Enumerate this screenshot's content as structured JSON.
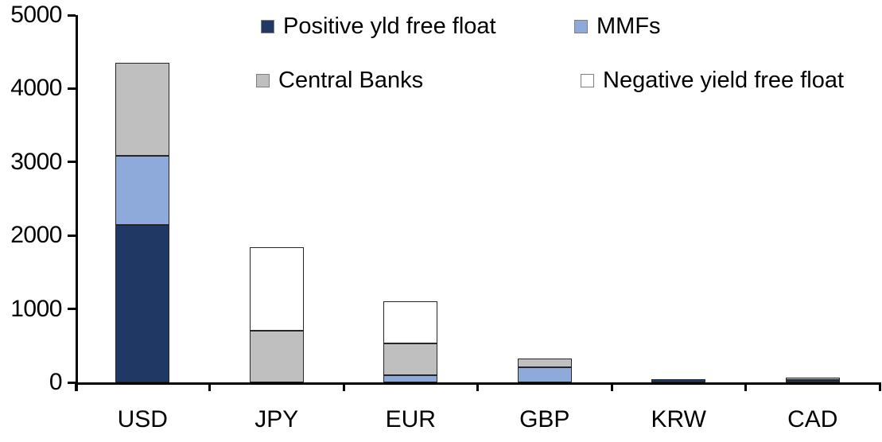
{
  "chart_data": {
    "type": "bar",
    "stacked": true,
    "title": "",
    "xlabel": "",
    "ylabel": "",
    "categories": [
      "USD",
      "JPY",
      "EUR",
      "GBP",
      "KRW",
      "CAD"
    ],
    "series": [
      {
        "name": "Positive yld free float",
        "color": "#1F3864",
        "values": [
          2140,
          0,
          0,
          0,
          40,
          30
        ]
      },
      {
        "name": "MMFs",
        "color": "#8EAADB",
        "values": [
          940,
          0,
          100,
          210,
          0,
          0
        ]
      },
      {
        "name": "Central Banks",
        "color": "#BFBFBF",
        "values": [
          1270,
          700,
          430,
          120,
          0,
          40
        ]
      },
      {
        "name": "Negative yield free float",
        "color": "#FFFFFF",
        "values": [
          0,
          1140,
          570,
          0,
          0,
          0
        ]
      }
    ],
    "ylim": [
      0,
      5000
    ],
    "yticks": [
      0,
      1000,
      2000,
      3000,
      4000,
      5000
    ],
    "grid": false,
    "legend_position": "top-inside-two-rows"
  },
  "colors": {
    "background": "#FFFFFF",
    "axis": "#000000",
    "segment_border": "#262626",
    "swatch_border": "#7F7F7F",
    "text": "#000000"
  }
}
